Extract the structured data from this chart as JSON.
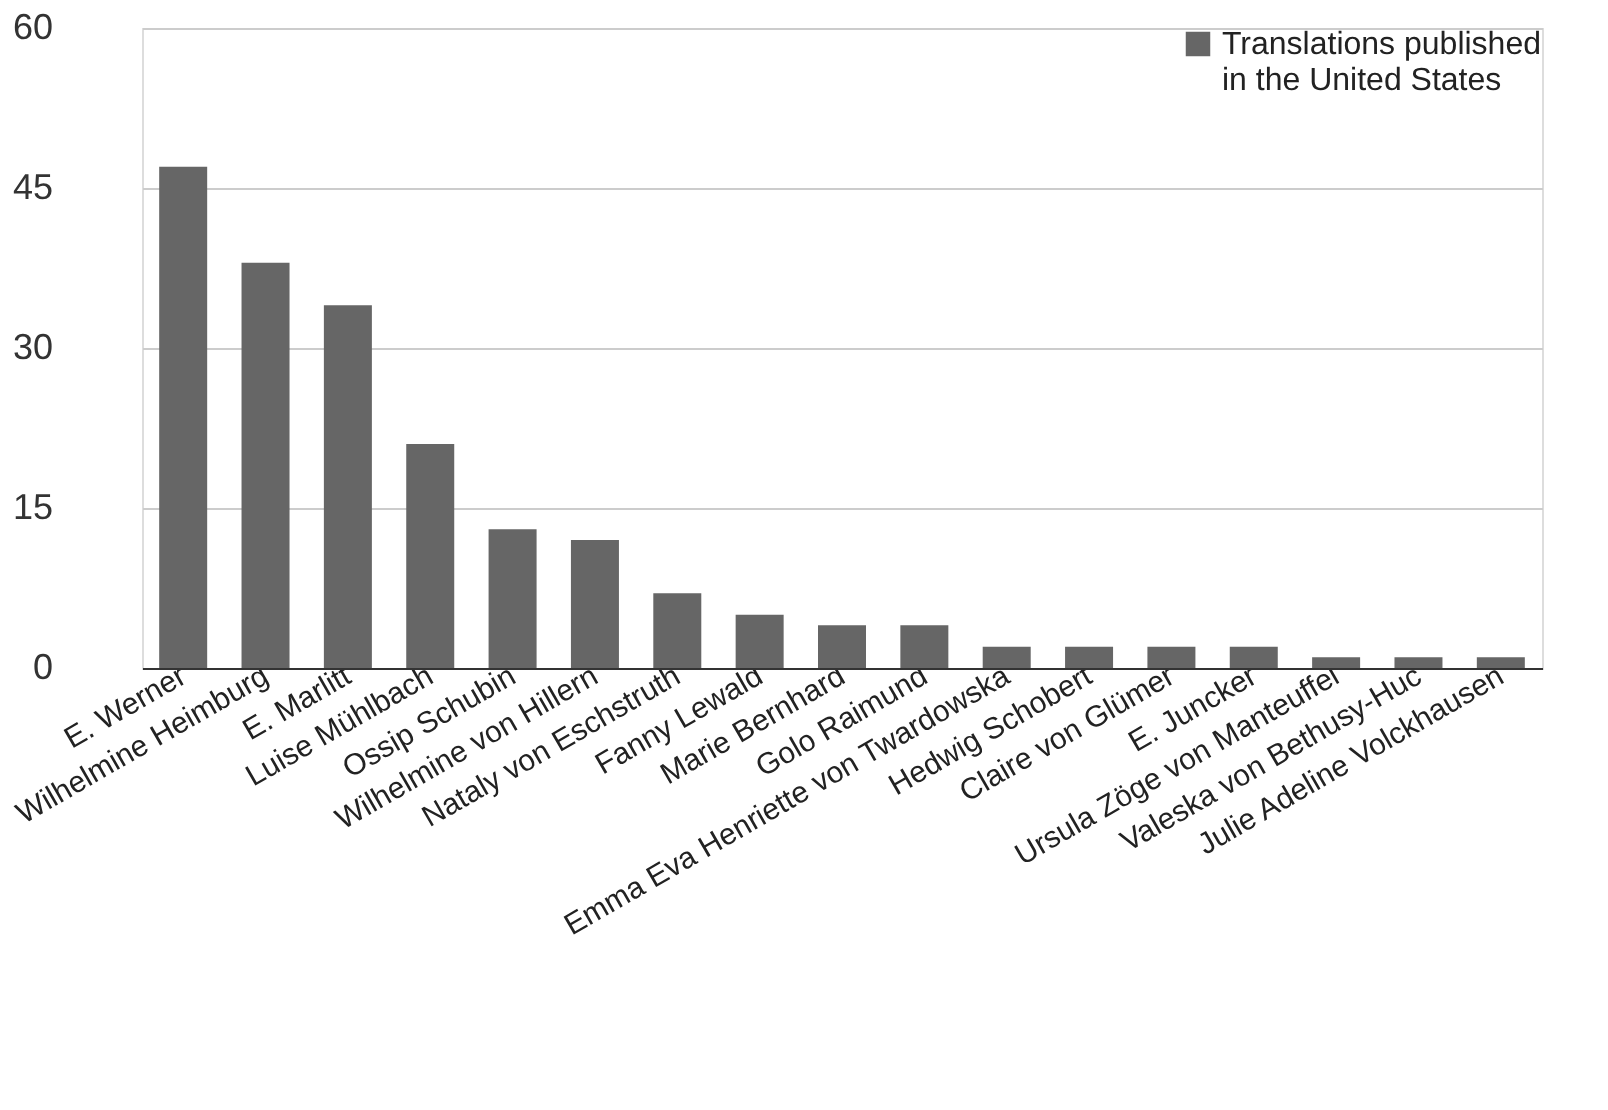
{
  "chart_data": {
    "type": "bar",
    "categories": [
      "E. Werner",
      "Wilhelmine Heimburg",
      "E. Marlitt",
      "Luise Mühlbach",
      "Ossip Schubin",
      "Wilhelmine von Hillern",
      "Nataly von Eschstruth",
      "Fanny Lewald",
      "Marie Bernhard",
      "Golo Raimund",
      "Emma Eva Henriette von Twardowska",
      "Hedwig Schobert",
      "Claire von Glümer",
      "E. Juncker",
      "Ursula Zöge von Manteuffel",
      "Valeska von Bethusy-Huc",
      "Julie Adeline Volckhausen"
    ],
    "series": [
      {
        "name": "Translations published in the United States",
        "color": "#666666",
        "values": [
          47,
          38,
          34,
          21,
          13,
          12,
          7,
          5,
          4,
          4,
          2,
          2,
          2,
          2,
          1,
          1,
          1
        ]
      }
    ],
    "ylim": [
      0,
      60
    ],
    "yticks": [
      0,
      15,
      30,
      45,
      60
    ],
    "grid": "y",
    "legend": "top right"
  }
}
